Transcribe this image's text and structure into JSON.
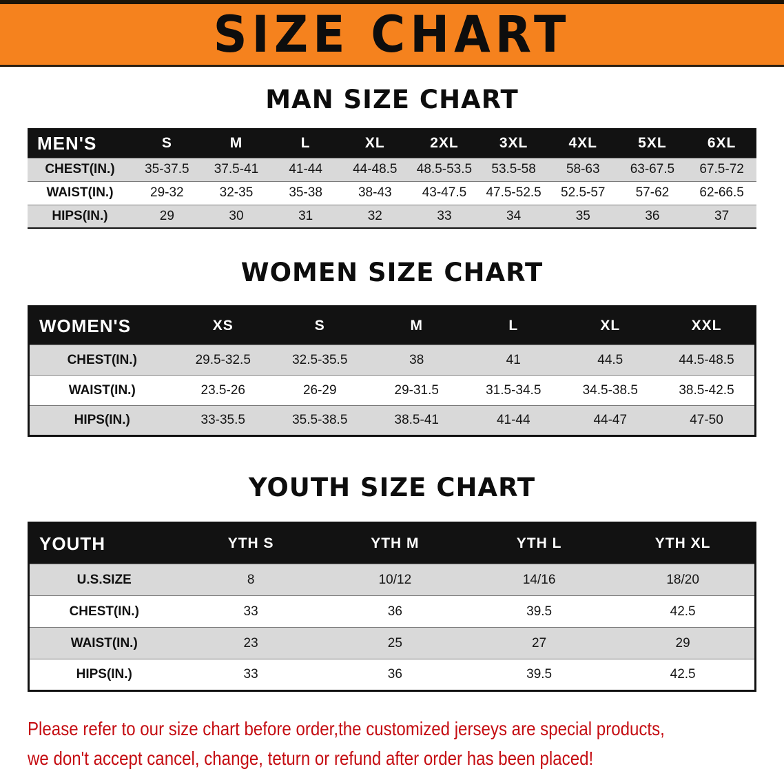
{
  "banner": {
    "title": "SIZE CHART",
    "bg_color": "#f5821e"
  },
  "sections": [
    {
      "id": "men",
      "heading": "MAN SIZE CHART",
      "table": {
        "header": [
          "MEN'S",
          "S",
          "M",
          "L",
          "XL",
          "2XL",
          "3XL",
          "4XL",
          "5XL",
          "6XL"
        ],
        "rows": [
          {
            "label": "CHEST(IN.)",
            "values": [
              "35-37.5",
              "37.5-41",
              "41-44",
              "44-48.5",
              "48.5-53.5",
              "53.5-58",
              "58-63",
              "63-67.5",
              "67.5-72"
            ]
          },
          {
            "label": "WAIST(IN.)",
            "values": [
              "29-32",
              "32-35",
              "35-38",
              "38-43",
              "43-47.5",
              "47.5-52.5",
              "52.5-57",
              "57-62",
              "62-66.5"
            ]
          },
          {
            "label": "HIPS(IN.)",
            "values": [
              "29",
              "30",
              "31",
              "32",
              "33",
              "34",
              "35",
              "36",
              "37"
            ]
          }
        ]
      }
    },
    {
      "id": "women",
      "heading": "WOMEN SIZE CHART",
      "table": {
        "header": [
          "WOMEN'S",
          "XS",
          "S",
          "M",
          "L",
          "XL",
          "XXL"
        ],
        "rows": [
          {
            "label": "CHEST(IN.)",
            "values": [
              "29.5-32.5",
              "32.5-35.5",
              "38",
              "41",
              "44.5",
              "44.5-48.5"
            ]
          },
          {
            "label": "WAIST(IN.)",
            "values": [
              "23.5-26",
              "26-29",
              "29-31.5",
              "31.5-34.5",
              "34.5-38.5",
              "38.5-42.5"
            ]
          },
          {
            "label": "HIPS(IN.)",
            "values": [
              "33-35.5",
              "35.5-38.5",
              "38.5-41",
              "41-44",
              "44-47",
              "47-50"
            ]
          }
        ]
      }
    },
    {
      "id": "youth",
      "heading": "YOUTH SIZE CHART",
      "table": {
        "header": [
          "YOUTH",
          "YTH S",
          "YTH M",
          "YTH L",
          "YTH XL"
        ],
        "rows": [
          {
            "label": "U.S.SIZE",
            "values": [
              "8",
              "10/12",
              "14/16",
              "18/20"
            ]
          },
          {
            "label": "CHEST(IN.)",
            "values": [
              "33",
              "36",
              "39.5",
              "42.5"
            ]
          },
          {
            "label": "WAIST(IN.)",
            "values": [
              "23",
              "25",
              "27",
              "29"
            ]
          },
          {
            "label": "HIPS(IN.)",
            "values": [
              "33",
              "36",
              "39.5",
              "42.5"
            ]
          }
        ]
      }
    }
  ],
  "layout": {
    "label_col_widths": {
      "men": "152px",
      "women": "212px",
      "youth": "218px"
    }
  },
  "footer": {
    "line1": "Please refer to our size chart before order,the customized jerseys are special products,",
    "line2": "we don't accept cancel, change, teturn or refund after order has been placed!",
    "text_color": "#c50d12"
  }
}
